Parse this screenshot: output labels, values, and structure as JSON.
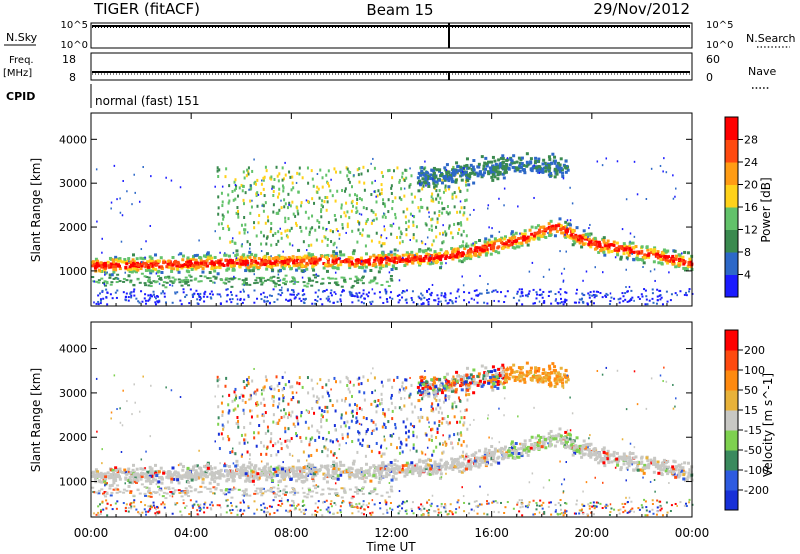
{
  "header": {
    "station": "TIGER (fitACF)",
    "beam": "Beam 15",
    "date": "29/Nov/2012"
  },
  "status_panels": {
    "nsky_label": "N.Sky",
    "nsearch_label": "N.Search",
    "noise_ticks": [
      "10^5",
      "10^0"
    ],
    "freq_label": "Freq.",
    "freq_unit": "[MHz]",
    "freq_ticks": [
      "18",
      "8"
    ],
    "nave_label": "Nave",
    "nave_ticks": [
      "60",
      "0"
    ],
    "cpid_label": "CPID",
    "cpid_value": "normal (fast) 151"
  },
  "chart_data": [
    {
      "type": "heatmap",
      "name": "power",
      "ylabel": "Slant Range [km]",
      "ylim": [
        200,
        4600
      ],
      "yticks": [
        "1000",
        "2000",
        "3000",
        "4000"
      ],
      "xlim": [
        0,
        24
      ],
      "colorbar": {
        "label": "Power [dB]",
        "ticks": [
          "4",
          "8",
          "12",
          "16",
          "20",
          "24",
          "28"
        ],
        "colors": [
          "#1b1bff",
          "#2d68c8",
          "#3a8a4f",
          "#62c26a",
          "#ffd21a",
          "#ff9c14",
          "#ff4a10",
          "#ff0000"
        ]
      },
      "features": {
        "main_band_km": [
          [
            0,
            1150
          ],
          [
            8,
            1250
          ],
          [
            11,
            1250
          ],
          [
            14,
            1350
          ],
          [
            16.5,
            1650
          ],
          [
            18.5,
            2050
          ],
          [
            20,
            1650
          ],
          [
            22,
            1450
          ],
          [
            24,
            1200
          ]
        ],
        "high_altitude_km": [
          [
            7,
            2600
          ],
          [
            11,
            2900
          ],
          [
            14,
            3200
          ],
          [
            17,
            3450
          ],
          [
            18.5,
            3400
          ]
        ]
      }
    },
    {
      "type": "heatmap",
      "name": "velocity",
      "ylabel": "Slant Range [km]",
      "ylim": [
        200,
        4600
      ],
      "yticks": [
        "1000",
        "2000",
        "3000",
        "4000"
      ],
      "xlim": [
        0,
        24
      ],
      "colorbar": {
        "label": "Velocity [m s^-1]",
        "ticks": [
          "200",
          "100",
          "50",
          "15",
          "-15",
          "-50",
          "-100",
          "-200"
        ],
        "colors": [
          "#1730d8",
          "#2e5be0",
          "#3a8a5e",
          "#7ed14f",
          "#c8c8c4",
          "#e8b23a",
          "#ff8a10",
          "#ff4a10",
          "#ff0000"
        ]
      }
    }
  ],
  "xaxis": {
    "label": "Time UT",
    "ticks": [
      "00:00",
      "04:00",
      "08:00",
      "12:00",
      "16:00",
      "20:00",
      "00:00"
    ]
  }
}
